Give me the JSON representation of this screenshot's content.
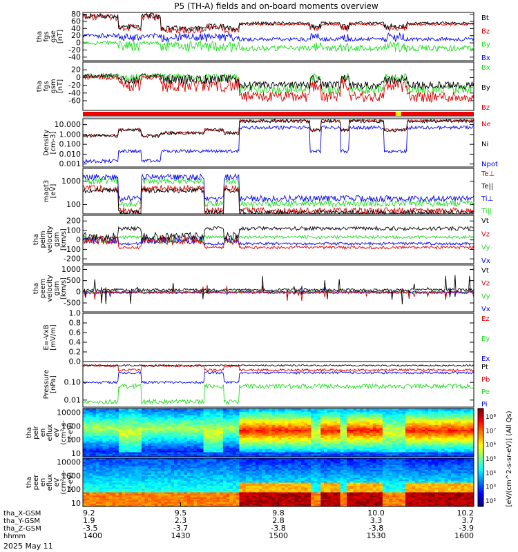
{
  "title": "P5 (TH-A) fields and on-board moments overview",
  "date_label": "2025 May 11",
  "colors": {
    "black": "#000000",
    "red": "#dd0000",
    "green": "#22dd22",
    "blue": "#0000ee"
  },
  "chart_data": {
    "type": "line",
    "x_time": {
      "range_hhmm": [
        "1400",
        "1600"
      ],
      "ticks": [
        {
          "hhmm": "1400",
          "x_gse": "9.2",
          "y_gse": "1.9",
          "z_gse": "-3.5"
        },
        {
          "hhmm": "1430",
          "x_gse": "9.5",
          "y_gse": "2.3",
          "z_gse": "-3.7"
        },
        {
          "hhmm": "1500",
          "x_gse": "9.8",
          "y_gse": "2.8",
          "z_gse": "-3.8"
        },
        {
          "hhmm": "1530",
          "x_gse": "10.0",
          "y_gse": "3.3",
          "z_gse": "-3.8"
        },
        {
          "hhmm": "1600",
          "x_gse": "10.2",
          "y_gse": "3.7",
          "z_gse": "-3.9"
        }
      ],
      "row_labels": [
        "tha_X-GSM",
        "tha_Y-GSM",
        "tha_Z-GSM",
        "hhmm"
      ]
    },
    "panels": [
      {
        "id": "fgs",
        "ylabel": [
          "tha",
          "fgs",
          "gse",
          "[nT]"
        ],
        "ylim": [
          -50,
          85
        ],
        "ticks": [
          "80",
          "60",
          "40",
          "20",
          "0",
          "-20",
          "-40"
        ],
        "legend": [
          {
            "label": "Bt",
            "color": "black"
          },
          {
            "label": "Bz",
            "color": "red"
          },
          {
            "label": "By",
            "color": "green"
          },
          {
            "label": "Bx",
            "color": "blue"
          }
        ]
      },
      {
        "id": "fgs_gsm",
        "ylabel": [
          "tha",
          "fgs",
          "gsm",
          "[nT]"
        ],
        "ylim": [
          -85,
          40
        ],
        "ticks": [
          "20",
          "0",
          "-20",
          "-40",
          "-60"
        ],
        "legend": [
          {
            "label": "Bx",
            "color": "green"
          },
          {
            "label": "By",
            "color": "black"
          },
          {
            "label": "Bz",
            "color": "red"
          }
        ]
      },
      {
        "id": "density",
        "ylabel": [
          "Density",
          "[cm-3]"
        ],
        "log": true,
        "ylim": [
          0.0005,
          40
        ],
        "ticks": [
          "10.000",
          "1.000",
          "0.100",
          "0.010",
          "0.001"
        ],
        "legend": [
          {
            "label": "Ne",
            "color": "red"
          },
          {
            "label": "Ni",
            "color": "black"
          },
          {
            "label": "Npot",
            "color": "blue"
          }
        ]
      },
      {
        "id": "temp",
        "ylabel": [
          "magt3",
          "[eV]"
        ],
        "log": true,
        "ylim": [
          40,
          3500
        ],
        "ticks": [
          "1000",
          "100"
        ],
        "legend": [
          {
            "label": "Te⊥",
            "color": "red"
          },
          {
            "label": "Te||",
            "color": "black"
          },
          {
            "label": "Ti⊥",
            "color": "blue"
          },
          {
            "label": "Ti||",
            "color": "green"
          }
        ]
      },
      {
        "id": "vel_peim",
        "ylabel": [
          "tha",
          "peim",
          "velocity",
          "gsm",
          "[km/s]"
        ],
        "ylim": [
          -250,
          260
        ],
        "ticks": [
          "200",
          "100",
          "0",
          "-100",
          "-200"
        ],
        "legend": [
          {
            "label": "Vt",
            "color": "black"
          },
          {
            "label": "Vz",
            "color": "red"
          },
          {
            "label": "Vy",
            "color": "green"
          },
          {
            "label": "Vx",
            "color": "blue"
          }
        ]
      },
      {
        "id": "vel_peem",
        "ylabel": [
          "tha",
          "peem",
          "velocity",
          "gsm",
          "[km/s]"
        ],
        "ylim": [
          -900,
          1200
        ],
        "ticks": [
          "1000",
          "500",
          "0",
          "-500"
        ],
        "legend": [
          {
            "label": "Vt",
            "color": "black"
          },
          {
            "label": "Vz",
            "color": "red"
          },
          {
            "label": "Vy",
            "color": "green"
          },
          {
            "label": "Vx",
            "color": "blue"
          }
        ]
      },
      {
        "id": "efield",
        "ylabel": [
          "E=-VxB",
          "[mV/m]"
        ],
        "ylim": [
          0,
          1
        ],
        "ticks": [
          "1.0",
          "0.8",
          "0.6",
          "0.4",
          "0.2",
          "0.0"
        ],
        "legend": [
          {
            "label": "Ez",
            "color": "red"
          },
          {
            "label": "Ey",
            "color": "green"
          },
          {
            "label": "Ex",
            "color": "blue"
          }
        ]
      },
      {
        "id": "pressure",
        "ylabel": [
          "Pressure",
          "[nPa]"
        ],
        "log": true,
        "ylim": [
          0.004,
          1.5
        ],
        "ticks": [
          "0.10",
          "0.01"
        ],
        "legend": [
          {
            "label": "Pt",
            "color": "black"
          },
          {
            "label": "Pb",
            "color": "red"
          },
          {
            "label": "Pe",
            "color": "green"
          },
          {
            "label": "Pi",
            "color": "blue"
          }
        ]
      },
      {
        "id": "peir",
        "ylabel": [
          "tha",
          "peir",
          "en",
          "eflux",
          "eV",
          "(cm²-s-",
          "sr-eV)"
        ],
        "log": true,
        "ylim": [
          6,
          20000
        ],
        "ticks": [
          "10000",
          "1000",
          "100",
          "10"
        ]
      },
      {
        "id": "peer",
        "ylabel": [
          "tha",
          "peer",
          "en",
          "eflux",
          "eV",
          "(cm²-s-",
          "sr-eV)"
        ],
        "log": true,
        "ylim": [
          6,
          20000
        ],
        "ticks": [
          "10000",
          "1000",
          "100",
          "10"
        ]
      }
    ],
    "colorbar": {
      "label": "[eV/(cm^2-s-sr-eV)] (All Qs)",
      "ticks": [
        "10⁸",
        "10⁷",
        "10⁶",
        "10⁵",
        "10⁴",
        "10³",
        "10²"
      ],
      "upper_ticks": [
        "10⁸",
        "10⁷",
        "10⁶",
        "10⁵",
        "10⁴",
        "10³"
      ]
    }
  }
}
